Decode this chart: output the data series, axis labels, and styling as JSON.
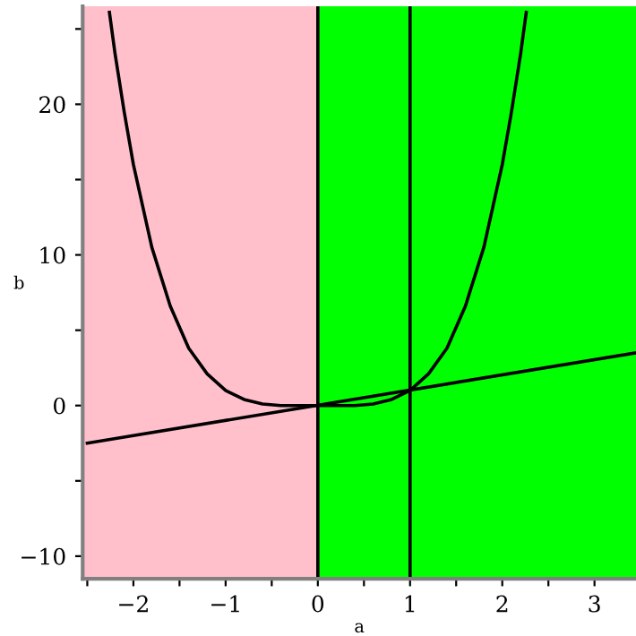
{
  "chart_data": {
    "type": "line",
    "xlabel": "a",
    "ylabel": "b",
    "xlim": [
      -2.55,
      3.45
    ],
    "ylim": [
      -11.5,
      26.5
    ],
    "xticks": [
      {
        "value": -2.5,
        "label": null
      },
      -2,
      {
        "value": -1.5,
        "label": null
      },
      -1,
      {
        "value": -0.5,
        "label": null
      },
      0,
      {
        "value": 0.5,
        "label": null
      },
      1,
      {
        "value": 1.5,
        "label": null
      },
      2,
      {
        "value": 2.5,
        "label": null
      },
      3
    ],
    "yticks": [
      -10,
      {
        "value": -5,
        "label": null
      },
      0,
      {
        "value": 5,
        "label": null
      },
      10,
      {
        "value": 15,
        "label": null
      },
      20,
      {
        "value": 25,
        "label": null
      }
    ],
    "series": [
      {
        "color": "#000000",
        "x": [
          -2.26,
          -2.2,
          -2.1,
          -2.0,
          -1.8,
          -1.6,
          -1.4,
          -1.2,
          -1.0,
          -0.8,
          -0.6,
          -0.4,
          -0.2,
          0,
          0.2,
          0.4,
          0.6,
          0.8,
          1.0,
          1.2,
          1.4,
          1.6,
          1.8,
          2.0,
          2.1,
          2.2,
          2.26
        ],
        "values": [
          26.1,
          23.4,
          19.5,
          16,
          10.5,
          6.6,
          3.8,
          2.1,
          1,
          0.4,
          0.1,
          0,
          0,
          0,
          0,
          0,
          0.1,
          0.4,
          1,
          2.1,
          3.8,
          6.6,
          10.5,
          16,
          19.5,
          23.4,
          26.1
        ]
      },
      {
        "color": "#000000",
        "x": [
          -2.5,
          3.45
        ],
        "values": [
          -2.5,
          3.5
        ]
      }
    ],
    "bands": [
      {
        "axis": "x",
        "from": -2.55,
        "to": 0,
        "color": "#ffc0cb"
      },
      {
        "axis": "x",
        "from": 0,
        "to": 3.45,
        "color": "#00ff00"
      }
    ],
    "ref_lines": [
      {
        "axis": "x",
        "value": 0,
        "color": "#000000"
      },
      {
        "axis": "x",
        "value": 1,
        "color": "#000000"
      }
    ],
    "grid": false,
    "legend": false,
    "marker": "none",
    "line_style": "solid"
  }
}
